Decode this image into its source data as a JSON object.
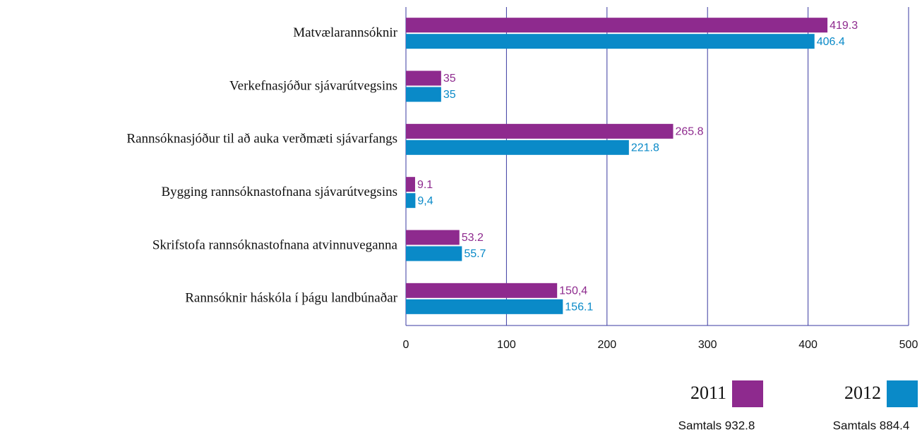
{
  "chart_data": {
    "type": "bar",
    "orientation": "horizontal",
    "categories": [
      "Matvælarannsóknir",
      "Verkefnasjóður sjávarútvegsins",
      "Rannsóknasjóður til að auka verðmæti sjávarfangs",
      "Bygging rannsóknastofnana sjávarútvegsins",
      "Skrifstofa rannsóknastofnana atvinnuveganna",
      "Rannsóknir háskóla í þágu landbúnaðar"
    ],
    "series": [
      {
        "name": "2011",
        "color": "#8e2a8e",
        "values": [
          419.3,
          35,
          265.8,
          9.1,
          53.2,
          150.4
        ],
        "value_labels": [
          "419.3",
          "35",
          "265.8",
          "9.1",
          "53.2",
          "150,4"
        ],
        "total_label": "Samtals 932.8"
      },
      {
        "name": "2012",
        "color": "#0a8ac8",
        "values": [
          406.4,
          35,
          221.8,
          9.4,
          55.7,
          156.1
        ],
        "value_labels": [
          "406.4",
          "35",
          "221.8",
          "9,4",
          "55.7",
          "156.1"
        ],
        "total_label": "Samtals 884.4"
      }
    ],
    "xlim": [
      0,
      500
    ],
    "xticks": [
      0,
      100,
      200,
      300,
      400,
      500
    ],
    "grid": true
  }
}
